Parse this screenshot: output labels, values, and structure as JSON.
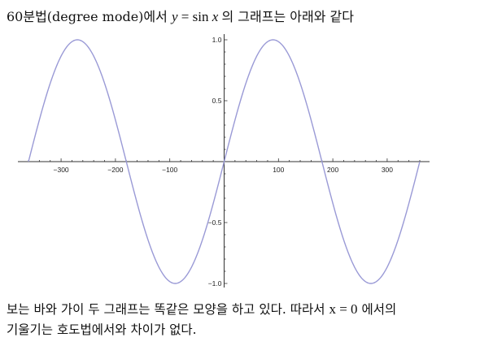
{
  "intro": {
    "prefix": "60분법(degree mode)에서",
    "equation_lhs": "y",
    "equation_eq": " = sin ",
    "equation_var": "x",
    "suffix": "의 그래프는 아래와 같다"
  },
  "chart_data": {
    "type": "line",
    "function": "sin(x°)",
    "series": [
      {
        "color": "#9a9ad6",
        "x": [
          -360,
          -330,
          -300,
          -270,
          -240,
          -210,
          -180,
          -150,
          -120,
          -90,
          -60,
          -30,
          0,
          30,
          60,
          90,
          120,
          150,
          180,
          210,
          240,
          270,
          300,
          330,
          360
        ],
        "y": [
          0,
          0.5,
          0.866,
          1,
          0.866,
          0.5,
          0,
          -0.5,
          -0.866,
          -1,
          -0.866,
          -0.5,
          0,
          0.5,
          0.866,
          1,
          0.866,
          0.5,
          0,
          -0.5,
          -0.866,
          -1,
          -0.866,
          -0.5,
          0
        ]
      }
    ],
    "xlim": [
      -360,
      360
    ],
    "ylim": [
      -1,
      1
    ],
    "xticks": [
      -300,
      -200,
      -100,
      100,
      200,
      300
    ],
    "xtick_labels": [
      "−300",
      "−200",
      "−100",
      "100",
      "200",
      "300"
    ],
    "yticks": [
      1.0,
      0.5,
      -0.5,
      -1.0
    ],
    "ytick_labels": [
      "1.0",
      "0.5",
      "−0.5",
      "−1.0"
    ],
    "grid": false
  },
  "outro": {
    "line1_prefix": "보는 바와 가이 두 그래프는 똑같은 모양을 하고 있다. 따라서",
    "equation": "x = 0",
    "line1_suffix": "에서의",
    "line2": "기울기는 호도법에서와 차이가 없다."
  }
}
